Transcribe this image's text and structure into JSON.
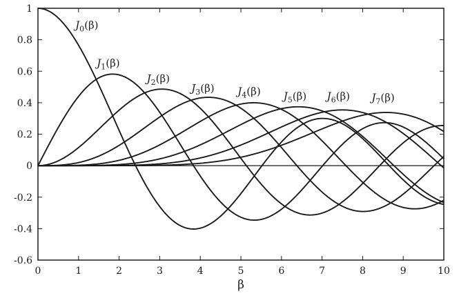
{
  "chart_data": {
    "type": "line",
    "title": "",
    "xlabel": "β",
    "ylabel": "",
    "xlim": [
      0,
      10
    ],
    "ylim": [
      -0.6,
      1.0
    ],
    "x_ticks": [
      0,
      1,
      2,
      3,
      4,
      5,
      6,
      7,
      8,
      9,
      10
    ],
    "y_ticks": [
      -0.6,
      -0.4,
      -0.2,
      0,
      0.2,
      0.4,
      0.6,
      0.8,
      1
    ],
    "y_tick_labels": [
      "-0.6",
      "-0.4",
      "-0.2",
      "0",
      "0.2",
      "0.4",
      "0.6",
      "0.8",
      "1"
    ],
    "grid": false,
    "legend": "none",
    "zero_line": true,
    "x": [
      0,
      0.5,
      1,
      1.5,
      2,
      2.5,
      3,
      3.5,
      4,
      4.5,
      5,
      5.5,
      6,
      6.5,
      7,
      7.5,
      8,
      8.5,
      9,
      9.5,
      10
    ],
    "series": [
      {
        "name": "J0(β)",
        "label_base": "J",
        "label_sub": "0",
        "label_arg": "(β)",
        "order": 0,
        "values": [
          1.0,
          0.938,
          0.765,
          0.512,
          0.224,
          -0.048,
          -0.26,
          -0.38,
          -0.397,
          -0.321,
          -0.178,
          -0.007,
          0.151,
          0.26,
          0.3,
          0.266,
          0.172,
          0.042,
          -0.09,
          -0.194,
          -0.246
        ]
      },
      {
        "name": "J1(β)",
        "label_base": "J",
        "label_sub": "1",
        "label_arg": "(β)",
        "order": 1,
        "values": [
          0.0,
          0.242,
          0.44,
          0.558,
          0.577,
          0.497,
          0.339,
          0.137,
          -0.066,
          -0.231,
          -0.328,
          -0.341,
          -0.277,
          -0.154,
          -0.005,
          0.135,
          0.235,
          0.273,
          0.245,
          0.161,
          0.043
        ]
      },
      {
        "name": "J2(β)",
        "label_base": "J",
        "label_sub": "2",
        "label_arg": "(β)",
        "order": 2,
        "values": [
          0.0,
          0.031,
          0.115,
          0.232,
          0.353,
          0.446,
          0.486,
          0.459,
          0.364,
          0.218,
          0.047,
          -0.117,
          -0.243,
          -0.307,
          -0.301,
          -0.23,
          -0.113,
          0.022,
          0.145,
          0.228,
          0.255
        ]
      },
      {
        "name": "J3(β)",
        "label_base": "J",
        "label_sub": "3",
        "label_arg": "(β)",
        "order": 3,
        "values": [
          0.0,
          0.003,
          0.02,
          0.061,
          0.129,
          0.217,
          0.309,
          0.387,
          0.43,
          0.425,
          0.365,
          0.256,
          0.115,
          -0.035,
          -0.168,
          -0.258,
          -0.291,
          -0.262,
          -0.181,
          -0.065,
          0.058
        ]
      },
      {
        "name": "J4(β)",
        "label_base": "J",
        "label_sub": "4",
        "label_arg": "(β)",
        "order": 4,
        "values": [
          0.0,
          0.0002,
          0.002,
          0.012,
          0.034,
          0.074,
          0.132,
          0.204,
          0.281,
          0.348,
          0.391,
          0.397,
          0.358,
          0.275,
          0.158,
          0.024,
          -0.105,
          -0.207,
          -0.265,
          -0.27,
          -0.22
        ]
      },
      {
        "name": "J5(β)",
        "label_base": "J",
        "label_sub": "5",
        "label_arg": "(β)",
        "order": 5,
        "values": [
          0.0,
          1e-05,
          0.0002,
          0.002,
          0.007,
          0.02,
          0.043,
          0.08,
          0.132,
          0.195,
          0.261,
          0.321,
          0.362,
          0.373,
          0.348,
          0.283,
          0.186,
          0.067,
          -0.055,
          -0.161,
          -0.234
        ]
      },
      {
        "name": "J6(β)",
        "label_base": "J",
        "label_sub": "6",
        "label_arg": "(β)",
        "order": 6,
        "values": [
          0.0,
          0.0,
          2e-05,
          0.0002,
          0.001,
          0.004,
          0.011,
          0.025,
          0.049,
          0.084,
          0.131,
          0.187,
          0.246,
          0.3,
          0.339,
          0.354,
          0.338,
          0.287,
          0.204,
          0.1,
          -0.014
        ]
      },
      {
        "name": "J7(β)",
        "label_base": "J",
        "label_sub": "7",
        "label_arg": "(β)",
        "order": 7,
        "values": [
          0.0,
          0.0,
          0.0,
          3e-05,
          0.0002,
          0.0008,
          0.003,
          0.007,
          0.015,
          0.03,
          0.053,
          0.086,
          0.129,
          0.18,
          0.234,
          0.283,
          0.321,
          0.34,
          0.327,
          0.282,
          0.217
        ]
      }
    ]
  }
}
